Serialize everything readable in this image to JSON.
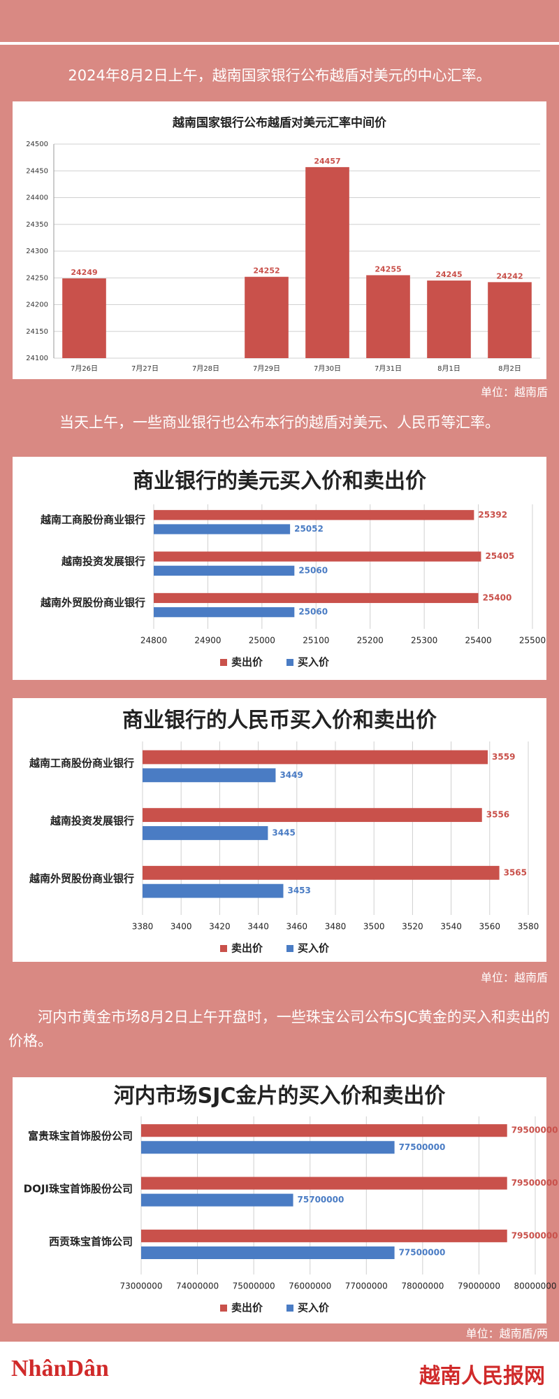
{
  "paragraphs": [
    "2024年8月2日上午，越南国家银行公布越盾对美元的中心汇率。",
    "当天上午，一些商业银行也公布本行的越盾对美元、人民币等汇率。",
    "河内市黄金市场8月2日上午开盘时，一些珠宝公司公布SJC黄金的买入和卖出的价格。"
  ],
  "units": [
    "单位：越南盾",
    "单位：越南盾",
    "单位：越南盾/两"
  ],
  "footer": {
    "logo": "NhânDân",
    "site": "越南人民报网"
  },
  "chart_data": [
    {
      "type": "bar",
      "title": "越南国家银行公布越盾对美元汇率中间价",
      "categories": [
        "7月26日",
        "7月27日",
        "7月28日",
        "7月29日",
        "7月30日",
        "7月31日",
        "8月1日",
        "8月2日"
      ],
      "values": [
        24249,
        null,
        null,
        24252,
        24457,
        24255,
        24245,
        24242
      ],
      "color": "#c9514b",
      "ylim": [
        24100,
        24500
      ],
      "yticks": [
        24100,
        24150,
        24200,
        24250,
        24300,
        24350,
        24400,
        24450,
        24500
      ],
      "grid": true
    },
    {
      "type": "barh",
      "title": "商业银行的美元买入价和卖出价",
      "categories": [
        "越南工商股份商业银行",
        "越南投资发展银行",
        "越南外贸股份商业银行"
      ],
      "series": [
        {
          "name": "卖出价",
          "color": "#c9514b",
          "values": [
            25392,
            25405,
            25400
          ]
        },
        {
          "name": "买入价",
          "color": "#4a7cc4",
          "values": [
            25052,
            25060,
            25060
          ]
        }
      ],
      "xlim": [
        24800,
        25500
      ],
      "xticks": [
        24800,
        24900,
        25000,
        25100,
        25200,
        25300,
        25400,
        25500
      ],
      "grid": true,
      "legend": "bottom"
    },
    {
      "type": "barh",
      "title": "商业银行的人民币买入价和卖出价",
      "categories": [
        "越南工商股份商业银行",
        "越南投资发展银行",
        "越南外贸股份商业银行"
      ],
      "series": [
        {
          "name": "卖出价",
          "color": "#c9514b",
          "values": [
            3559,
            3556,
            3565
          ]
        },
        {
          "name": "买入价",
          "color": "#4a7cc4",
          "values": [
            3449,
            3445,
            3453
          ]
        }
      ],
      "xlim": [
        3380,
        3580
      ],
      "xticks": [
        3380,
        3400,
        3420,
        3440,
        3460,
        3480,
        3500,
        3520,
        3540,
        3560,
        3580
      ],
      "grid": true,
      "legend": "bottom"
    },
    {
      "type": "barh",
      "title": "河内市场SJC金片的买入价和卖出价",
      "categories": [
        "富贵珠宝首饰股份公司",
        "DOJI珠宝首饰股份公司",
        "西贡珠宝首饰公司"
      ],
      "series": [
        {
          "name": "卖出价",
          "color": "#c9514b",
          "values": [
            79500000,
            79500000,
            79500000
          ]
        },
        {
          "name": "买入价",
          "color": "#4a7cc4",
          "values": [
            77500000,
            75700000,
            77500000
          ]
        }
      ],
      "xlim": [
        73000000,
        80000000
      ],
      "xticks": [
        73000000,
        74000000,
        75000000,
        76000000,
        77000000,
        78000000,
        79000000,
        80000000
      ],
      "grid": true,
      "legend": "bottom"
    }
  ]
}
